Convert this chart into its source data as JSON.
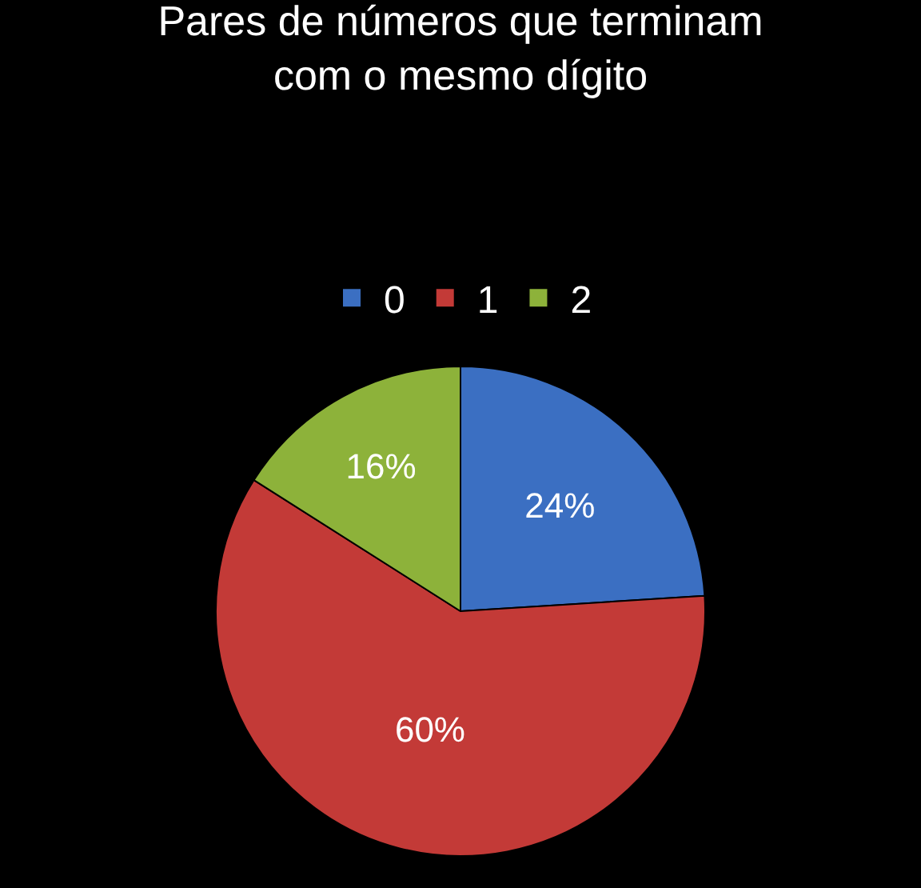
{
  "chart_data": {
    "type": "pie",
    "title": "Pares de números que terminam\ncom o mesmo dígito",
    "categories": [
      "0",
      "1",
      "2"
    ],
    "values": [
      24,
      60,
      16
    ],
    "value_labels": [
      "24%",
      "60%",
      "16%"
    ],
    "colors": [
      "#3b6fc2",
      "#c33a37",
      "#8db23a"
    ],
    "legend": "top"
  }
}
